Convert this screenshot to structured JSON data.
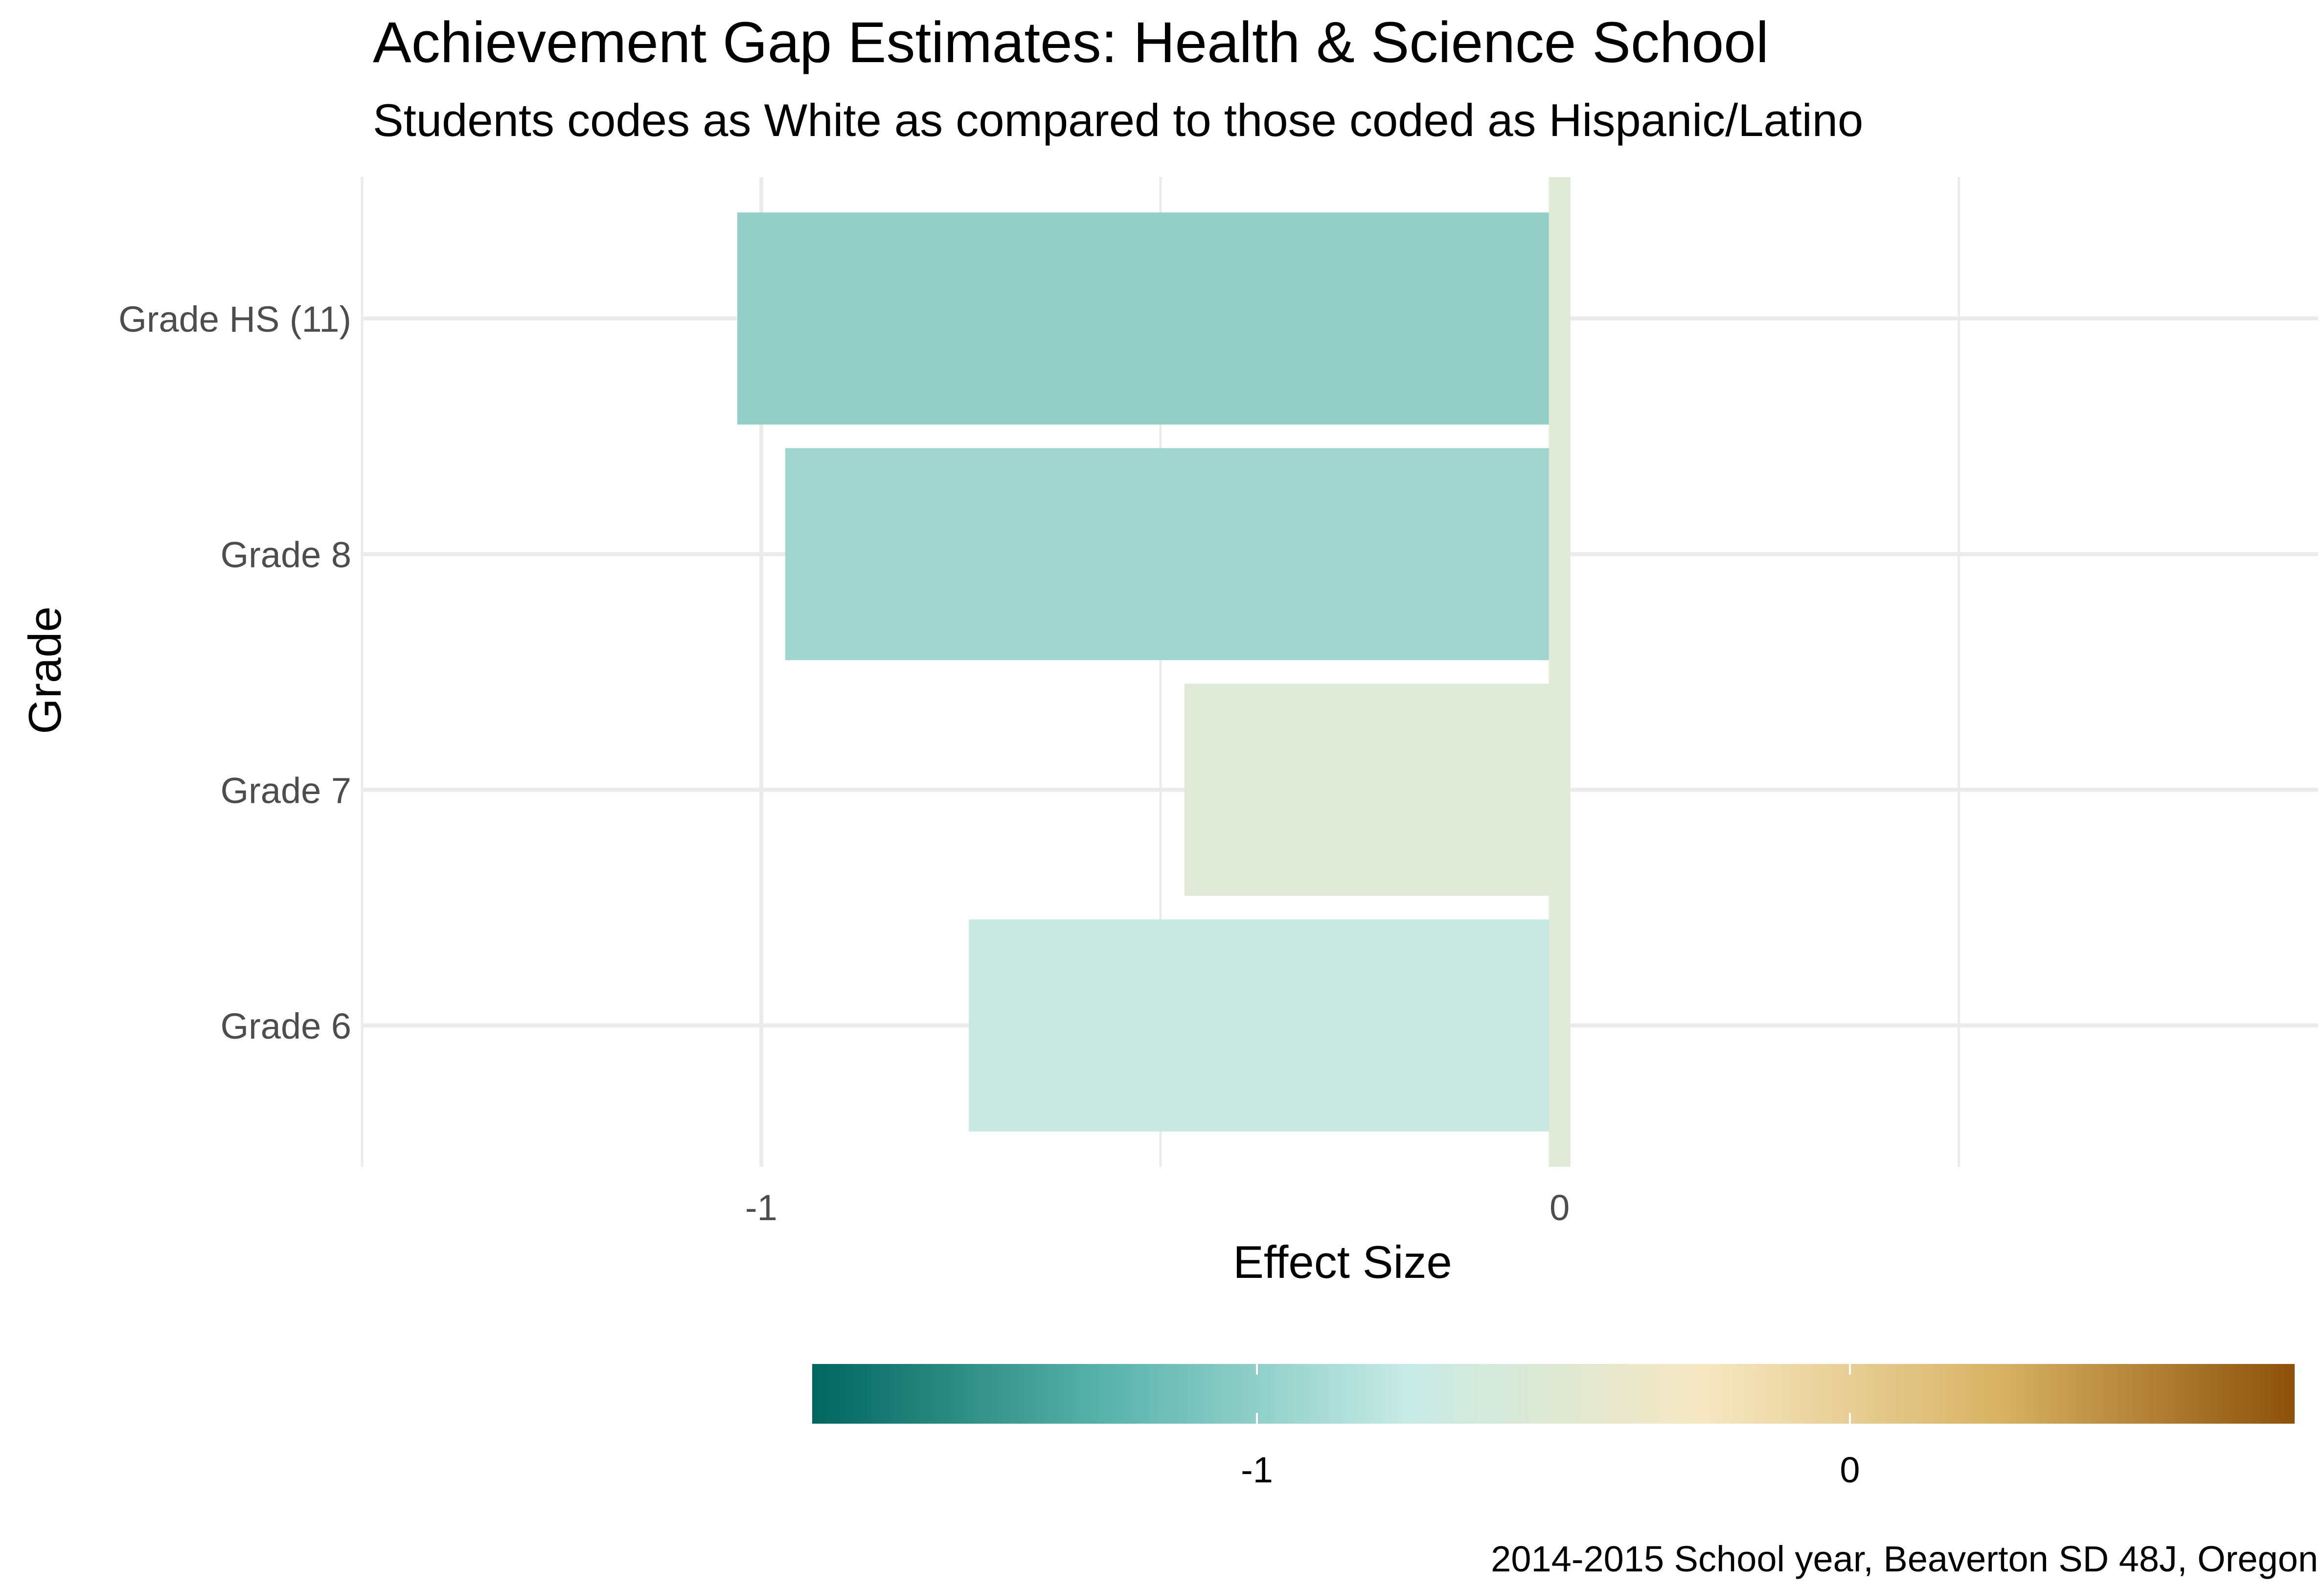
{
  "chart_data": {
    "type": "bar",
    "orientation": "horizontal",
    "title": "Achievement Gap Estimates: Health & Science School",
    "subtitle": "Students codes as White as compared to those coded as Hispanic/Latino",
    "xlabel": "Effect Size",
    "ylabel": "Grade",
    "caption": "2014-2015 School year, Beaverton SD 48J, Oregon",
    "categories": [
      "Grade 6",
      "Grade 7",
      "Grade 8",
      "Grade HS (11)"
    ],
    "values": [
      -0.74,
      -0.47,
      -0.97,
      -1.03
    ],
    "xlim": [
      -1.5,
      0.95
    ],
    "x_ticks": [
      -1,
      0
    ],
    "x_tick_labels": [
      "-1",
      "0"
    ],
    "reference_line": 0,
    "grid": true,
    "bar_colors": [
      "#c7e9e2",
      "#e0ead6",
      "#a0d6ce",
      "#93cfc7"
    ],
    "reference_line_color": "#e0ead6",
    "legend": {
      "position": "bottom",
      "type": "colorbar",
      "range": [
        -1.75,
        0.75
      ],
      "ticks": [
        -1,
        0
      ],
      "tick_labels": [
        "-1",
        "0"
      ],
      "colors": [
        "#01665e",
        "#5ab4ac",
        "#c7eae5",
        "#f6e8c3",
        "#d8b365",
        "#8c510a"
      ]
    }
  }
}
